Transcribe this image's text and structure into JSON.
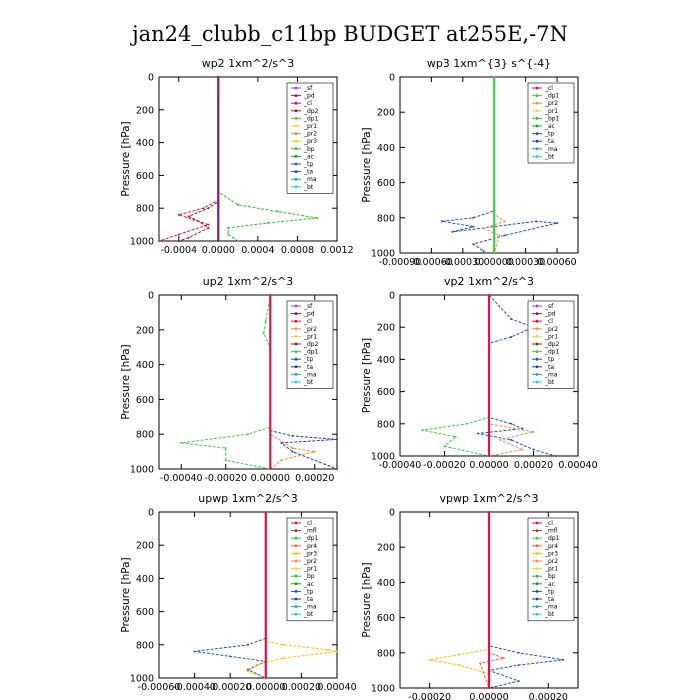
{
  "figure": {
    "title": "jan24_clubb_c11bp  BUDGET at255E,-7N"
  },
  "colors": {
    "sf": "#a040c0",
    "pd": "#702080",
    "cl": "#e01050",
    "dp2": "#a01818",
    "pr2": "#f09040",
    "pr1": "#f0d040",
    "bp": "#30c030",
    "ac": "#10a010",
    "tp": "#2050c0",
    "ta": "#2040a0",
    "ma": "#20a0c0",
    "bt": "#20d0e0",
    "dp1": "#3cd03c",
    "mfl": "#b03030",
    "pr3": "#ffc000",
    "pr4": "#ff6040",
    "bp1": "#30c030"
  },
  "chart_data": [
    {
      "type": "line",
      "title": "wp2   1xm^2/s^3",
      "ylabel": "Pressure  [hPa]",
      "xlim": [
        -0.0006,
        0.0012
      ],
      "ylim": [
        1000,
        0
      ],
      "xticks": [
        "-0.0004",
        "0.0000",
        "0.0004",
        "0.0008",
        "0.0012"
      ],
      "xtick_values": [
        -0.0004,
        0,
        0.0004,
        0.0008,
        0.0012
      ],
      "yticks": [
        "0",
        "200",
        "400",
        "600",
        "800",
        "1000"
      ],
      "ytick_values": [
        0,
        200,
        400,
        600,
        800,
        1000
      ],
      "legend": [
        "_sf",
        "_pd",
        "_cl",
        "_dp2",
        "_dp1",
        "_pr1",
        "_pr2",
        "_pr3",
        "_bp",
        "_ac",
        "_tp",
        "_ta",
        "_ma",
        "_bt"
      ],
      "legend_keys": [
        "sf",
        "pd",
        "cl",
        "dp2",
        "dp1",
        "pr1",
        "pr2",
        "pr3",
        "bp",
        "ac",
        "tp",
        "ta",
        "ma",
        "bt"
      ],
      "legend_position": "top-right",
      "series": [
        {
          "key": "bp",
          "pts": [
            [
              0,
              0
            ],
            [
              0,
              700
            ],
            [
              0.0002,
              780
            ],
            [
              0.0006,
              820
            ],
            [
              0.001,
              860
            ],
            [
              0.0005,
              890
            ],
            [
              0.0001,
              920
            ],
            [
              0.0001,
              960
            ],
            [
              0.0002,
              1000
            ]
          ]
        },
        {
          "key": "cl",
          "pts": [
            [
              0,
              0
            ],
            [
              0,
              750
            ],
            [
              -0.00015,
              800
            ],
            [
              -0.0004,
              840
            ],
            [
              -0.00025,
              870
            ],
            [
              -0.0001,
              900
            ],
            [
              -0.0004,
              960
            ],
            [
              -0.0006,
              1000
            ]
          ]
        },
        {
          "key": "dp2",
          "pts": [
            [
              0,
              0
            ],
            [
              0,
              760
            ],
            [
              -0.0001,
              800
            ],
            [
              -0.0003,
              850
            ],
            [
              -0.0002,
              880
            ],
            [
              -0.0001,
              920
            ],
            [
              -0.0003,
              980
            ],
            [
              -0.0004,
              1000
            ]
          ]
        },
        {
          "key": "pd",
          "pts": [
            [
              0,
              0
            ],
            [
              0,
              1000
            ]
          ]
        }
      ]
    },
    {
      "type": "line",
      "title": "wp3   1xm^{3} s^{-4}",
      "ylabel": "Pressure  [hPa]",
      "xlim": [
        -0.0009,
        0.0008
      ],
      "ylim": [
        1000,
        0
      ],
      "xticks": [
        "-0.00090",
        "-0.00060",
        "-0.00030",
        "0.00000",
        "0.00030",
        "0.00060"
      ],
      "xtick_values": [
        -0.0009,
        -0.0006,
        -0.0003,
        0,
        0.0003,
        0.0006
      ],
      "yticks": [
        "0",
        "200",
        "400",
        "600",
        "800",
        "1000"
      ],
      "ytick_values": [
        0,
        200,
        400,
        600,
        800,
        1000
      ],
      "legend": [
        "_cl",
        "_dp1",
        "_pr2",
        "_pr1",
        "_bp1",
        "_ac",
        "_tp",
        "_ta",
        "_ma",
        "_bt"
      ],
      "legend_keys": [
        "cl",
        "dp1",
        "pr2",
        "pr1",
        "bp1",
        "ac",
        "tp",
        "ta",
        "ma",
        "bt"
      ],
      "legend_position": "top-right",
      "series": [
        {
          "key": "tp",
          "pts": [
            [
              0,
              0
            ],
            [
              0,
              760
            ],
            [
              -0.0002,
              800
            ],
            [
              -0.0005,
              820
            ],
            [
              -0.0002,
              850
            ],
            [
              -0.0004,
              880
            ],
            [
              0.0004,
              820
            ],
            [
              0.0006,
              830
            ],
            [
              0.0001,
              900
            ],
            [
              -0.0002,
              950
            ],
            [
              -0.0001,
              990
            ]
          ]
        },
        {
          "key": "pr2",
          "pts": [
            [
              0,
              0
            ],
            [
              0,
              780
            ],
            [
              0.0001,
              820
            ],
            [
              -0.0001,
              860
            ],
            [
              5e-05,
              900
            ],
            [
              0,
              1000
            ]
          ]
        },
        {
          "key": "dp1",
          "pts": [
            [
              0,
              0
            ],
            [
              0,
              1000
            ]
          ]
        }
      ]
    },
    {
      "type": "line",
      "title": "up2   1xm^2/s^3",
      "ylabel": "Pressure  [hPa]",
      "xlim": [
        -0.0005,
        0.0003
      ],
      "ylim": [
        1000,
        0
      ],
      "xticks": [
        "-0.00040",
        "-0.00020",
        "0.00000",
        "0.00020"
      ],
      "xtick_values": [
        -0.0004,
        -0.0002,
        0,
        0.0002
      ],
      "yticks": [
        "0",
        "200",
        "400",
        "600",
        "800",
        "1000"
      ],
      "ytick_values": [
        0,
        200,
        400,
        600,
        800,
        1000
      ],
      "legend": [
        "_sf",
        "_pd",
        "_cl",
        "_pr2",
        "_pr1",
        "_dp2",
        "_dp1",
        "_tp",
        "_ta",
        "_ma",
        "_bt"
      ],
      "legend_keys": [
        "sf",
        "pd",
        "cl",
        "pr2",
        "pr1",
        "dp2",
        "dp1",
        "tp",
        "ta",
        "ma",
        "bt"
      ],
      "legend_position": "top-right",
      "series": [
        {
          "key": "dp1",
          "pts": [
            [
              0,
              0
            ],
            [
              -2e-05,
              150
            ],
            [
              -3e-05,
              220
            ],
            [
              0,
              300
            ],
            [
              0,
              760
            ],
            [
              -0.0001,
              800
            ],
            [
              -0.0004,
              850
            ],
            [
              -0.0002,
              880
            ],
            [
              -0.0002,
              950
            ],
            [
              0,
              1000
            ]
          ]
        },
        {
          "key": "ta",
          "pts": [
            [
              0,
              0
            ],
            [
              0,
              780
            ],
            [
              0.0001,
              810
            ],
            [
              0.0003,
              830
            ],
            [
              5e-05,
              850
            ],
            [
              0.0001,
              900
            ],
            [
              0.0003,
              1000
            ]
          ]
        },
        {
          "key": "pr2",
          "pts": [
            [
              0,
              0
            ],
            [
              0,
              800
            ],
            [
              0.0001,
              880
            ],
            [
              0.0002,
              900
            ],
            [
              5e-05,
              950
            ],
            [
              0,
              1000
            ]
          ]
        },
        {
          "key": "cl",
          "pts": [
            [
              0,
              0
            ],
            [
              0,
              1000
            ]
          ]
        }
      ]
    },
    {
      "type": "line",
      "title": "vp2   1xm^2/s^3",
      "ylabel": "Pressure  [hPa]",
      "xlim": [
        -0.0004,
        0.0004
      ],
      "ylim": [
        1000,
        0
      ],
      "xticks": [
        "-0.00040",
        "-0.00020",
        "0.00000",
        "0.00020",
        "0.00040"
      ],
      "xtick_values": [
        -0.0004,
        -0.0002,
        0,
        0.0002,
        0.0004
      ],
      "yticks": [
        "0",
        "200",
        "400",
        "600",
        "800",
        "1000"
      ],
      "ytick_values": [
        0,
        200,
        400,
        600,
        800,
        1000
      ],
      "legend": [
        "_sf",
        "_pd",
        "_cl",
        "_pr2",
        "_pr1",
        "_dp2",
        "_dp1",
        "_tp",
        "_ta",
        "_ma",
        "_bt"
      ],
      "legend_keys": [
        "sf",
        "pd",
        "cl",
        "pr2",
        "pr1",
        "dp2",
        "dp1",
        "tp",
        "ta",
        "ma",
        "bt"
      ],
      "legend_position": "top-right",
      "series": [
        {
          "key": "tp",
          "pts": [
            [
              0,
              0
            ],
            [
              0.0001,
              150
            ],
            [
              0.0002,
              200
            ],
            [
              0.0001,
              260
            ],
            [
              0,
              300
            ],
            [
              0,
              760
            ],
            [
              0.0001,
              800
            ],
            [
              0.00015,
              830
            ],
            [
              -5e-05,
              860
            ],
            [
              0.0001,
              900
            ],
            [
              0.0002,
              960
            ],
            [
              0.0003,
              1000
            ]
          ]
        },
        {
          "key": "dp1",
          "pts": [
            [
              0,
              0
            ],
            [
              0,
              760
            ],
            [
              -0.0001,
              800
            ],
            [
              -0.0003,
              840
            ],
            [
              -0.00015,
              880
            ],
            [
              -0.0002,
              940
            ],
            [
              0,
              1000
            ]
          ]
        },
        {
          "key": "pr2",
          "pts": [
            [
              0,
              0
            ],
            [
              0,
              800
            ],
            [
              0.0002,
              850
            ],
            [
              5e-05,
              900
            ],
            [
              0.00015,
              960
            ],
            [
              0,
              1000
            ]
          ]
        },
        {
          "key": "cl",
          "pts": [
            [
              0,
              0
            ],
            [
              0,
              1000
            ]
          ]
        }
      ]
    },
    {
      "type": "line",
      "title": "upwp   1xm^2/s^3",
      "ylabel": "Pressure  [hPa]",
      "xlim": [
        -0.0006,
        0.0004
      ],
      "ylim": [
        1000,
        0
      ],
      "xticks": [
        "-0.00060",
        "-0.00040",
        "-0.00020",
        "0.00000",
        "0.00020",
        "0.00040"
      ],
      "xtick_values": [
        -0.0006,
        -0.0004,
        -0.0002,
        0,
        0.0002,
        0.0004
      ],
      "yticks": [
        "0",
        "200",
        "400",
        "600",
        "800",
        "1000"
      ],
      "ytick_values": [
        0,
        200,
        400,
        600,
        800,
        1000
      ],
      "legend": [
        "_cl",
        "_mfl",
        "_dp1",
        "_pr4",
        "_pr3",
        "_pr2",
        "_pr1",
        "_bp",
        "_ac",
        "_tp",
        "_ta",
        "_ma",
        "_bt"
      ],
      "legend_keys": [
        "cl",
        "mfl",
        "dp1",
        "pr4",
        "pr3",
        "pr2",
        "pr1",
        "bp",
        "ac",
        "tp",
        "ta",
        "ma",
        "bt"
      ],
      "legend_position": "top-right",
      "series": [
        {
          "key": "tp",
          "pts": [
            [
              0,
              0
            ],
            [
              0,
              760
            ],
            [
              -0.0001,
              800
            ],
            [
              -0.0004,
              840
            ],
            [
              -0.0002,
              870
            ],
            [
              0,
              900
            ],
            [
              -0.0001,
              950
            ],
            [
              0,
              1000
            ]
          ]
        },
        {
          "key": "pr3",
          "pts": [
            [
              0,
              0
            ],
            [
              0,
              780
            ],
            [
              0.0001,
              800
            ],
            [
              0.00035,
              830
            ],
            [
              0.0004,
              840
            ],
            [
              0.0001,
              880
            ],
            [
              -5e-05,
              920
            ],
            [
              -0.0001,
              960
            ],
            [
              0,
              1000
            ]
          ]
        },
        {
          "key": "cl",
          "pts": [
            [
              0,
              0
            ],
            [
              0,
              1000
            ]
          ]
        }
      ]
    },
    {
      "type": "line",
      "title": "vpwp   1xm^2/s^3",
      "ylabel": "Pressure  [hPa]",
      "xlim": [
        -0.0003,
        0.0003
      ],
      "ylim": [
        1000,
        0
      ],
      "xticks": [
        "-0.00020",
        "0.00000",
        "0.00020"
      ],
      "xtick_values": [
        -0.0002,
        0,
        0.0002
      ],
      "yticks": [
        "0",
        "200",
        "400",
        "600",
        "800",
        "1000"
      ],
      "ytick_values": [
        0,
        200,
        400,
        600,
        800,
        1000
      ],
      "legend": [
        "_cl",
        "_mfl",
        "_dp1",
        "_pr4",
        "_pr3",
        "_pr2",
        "_pr1",
        "_bp",
        "_ac",
        "_tp",
        "_ta",
        "_ma",
        "_bt"
      ],
      "legend_keys": [
        "cl",
        "mfl",
        "dp1",
        "pr4",
        "pr3",
        "pr2",
        "pr1",
        "bp",
        "ac",
        "tp",
        "ta",
        "ma",
        "bt"
      ],
      "legend_position": "top-right",
      "series": [
        {
          "key": "tp",
          "pts": [
            [
              0,
              0
            ],
            [
              0,
              760
            ],
            [
              0.0001,
              800
            ],
            [
              0.00025,
              840
            ],
            [
              0.0001,
              870
            ],
            [
              0,
              900
            ],
            [
              0.0001,
              960
            ],
            [
              0,
              1000
            ]
          ]
        },
        {
          "key": "pr3",
          "pts": [
            [
              0,
              0
            ],
            [
              0,
              780
            ],
            [
              -0.0001,
              810
            ],
            [
              -0.0002,
              840
            ],
            [
              -0.0001,
              870
            ],
            [
              0,
              920
            ],
            [
              0,
              1000
            ]
          ]
        },
        {
          "key": "pr4",
          "pts": [
            [
              0,
              0
            ],
            [
              0,
              800
            ],
            [
              5e-05,
              830
            ],
            [
              -3e-05,
              860
            ],
            [
              0,
              1000
            ]
          ]
        },
        {
          "key": "cl",
          "pts": [
            [
              0,
              0
            ],
            [
              0,
              1000
            ]
          ]
        }
      ]
    }
  ]
}
